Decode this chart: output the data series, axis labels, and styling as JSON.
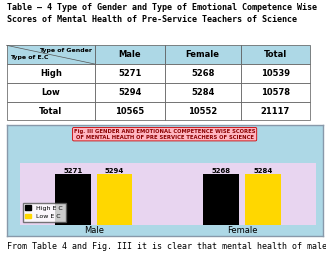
{
  "table_title_line1": "Table – 4 Type of Gender and Type of Emotional Competence Wise",
  "table_title_line2": "Scores of Mental Health of Pre-Service Teachers of Science",
  "col_headers": [
    "",
    "Male",
    "Female",
    "Total"
  ],
  "table_rows": [
    [
      "High",
      "5271",
      "5268",
      "10539"
    ],
    [
      "Low",
      "5294",
      "5284",
      "10578"
    ],
    [
      "Total",
      "10565",
      "10552",
      "21117"
    ]
  ],
  "diag_top_text": "Type of Gender",
  "diag_bot_text": "Type of E.C",
  "chart_title_line1": "Fig. III GENDER AND EMOTIONAL COMPETENCE WISE SCORES",
  "chart_title_line2": "OF MENTAL HEALTH OF PRE SERVICE TEACHERS OF SCIENCE",
  "groups": [
    "Male",
    "Female"
  ],
  "high_ec": [
    5271,
    5268
  ],
  "low_ec": [
    5294,
    5284
  ],
  "bar_color_high": "#000000",
  "bar_color_low": "#FFD700",
  "legend_labels": [
    "High E C",
    "Low E C"
  ],
  "chart_bg": "#E8D5F0",
  "chart_outer_bg": "#ADD8E6",
  "footer_text": "From Table 4 and Fig. III it is clear that mental health of male",
  "table_header_bg": "#ADD8E6",
  "table_row_bg": "#FFFFFF",
  "bar_label_fontsize": 5,
  "axis_label_fontsize": 6
}
